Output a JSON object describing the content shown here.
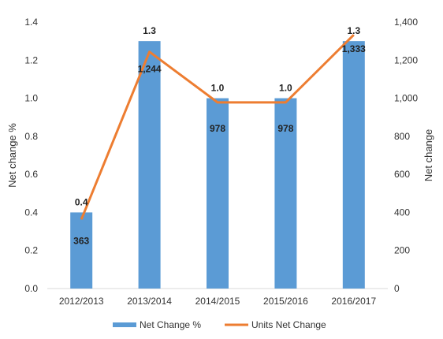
{
  "chart_data": {
    "type": "bar+line",
    "categories": [
      "2012/2013",
      "2013/2014",
      "2014/2015",
      "2015/2016",
      "2016/2017"
    ],
    "series": [
      {
        "name": "Net Change %",
        "type": "bar",
        "axis": "left",
        "values": [
          0.4,
          1.3,
          1.0,
          1.0,
          1.3
        ],
        "labels": [
          "0.4",
          "1.3",
          "1.0",
          "1.0",
          "1.3"
        ]
      },
      {
        "name": "Units Net Change",
        "type": "line",
        "axis": "right",
        "values": [
          363,
          1244,
          978,
          978,
          1333
        ],
        "labels": [
          "363",
          "1,244",
          "978",
          "978",
          "1,333"
        ]
      }
    ],
    "y_left": {
      "label": "Net change %",
      "lim": [
        0,
        1.4
      ],
      "ticks": [
        0.0,
        0.2,
        0.4,
        0.6,
        0.8,
        1.0,
        1.2,
        1.4
      ],
      "tick_labels": [
        "0.0",
        "0.2",
        "0.4",
        "0.6",
        "0.8",
        "1.0",
        "1.2",
        "1.4"
      ]
    },
    "y_right": {
      "label": "Net change",
      "lim": [
        0,
        1400
      ],
      "ticks": [
        0,
        200,
        400,
        600,
        800,
        1000,
        1200,
        1400
      ],
      "tick_labels": [
        "0",
        "200",
        "400",
        "600",
        "800",
        "1,000",
        "1,200",
        "1,400"
      ]
    },
    "grid": false,
    "legend_position": "bottom",
    "colors": {
      "bar": "#5b9bd5",
      "line": "#ed7d31",
      "axis": "#d9d9d9"
    }
  }
}
